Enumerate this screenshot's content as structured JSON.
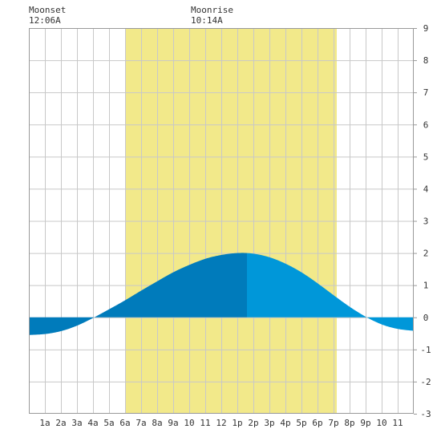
{
  "header": {
    "moonset_label": "Moonset",
    "moonset_time": "12:06A",
    "moonrise_label": "Moonrise",
    "moonrise_time": "10:14A"
  },
  "colors": {
    "daylight": "#f2e98a",
    "tide_dark": "#007bbb",
    "tide_light": "#0097d9",
    "grid": "#c8c8c8",
    "frame": "#999999"
  },
  "chart_data": {
    "type": "area",
    "title": "",
    "xlabel": "",
    "ylabel": "",
    "xlim": [
      0,
      24
    ],
    "ylim": [
      -3,
      9
    ],
    "grid": true,
    "x_tick_labels": [
      "1a",
      "2a",
      "3a",
      "4a",
      "5a",
      "6a",
      "7a",
      "8a",
      "9a",
      "10",
      "11",
      "12",
      "1p",
      "2p",
      "3p",
      "4p",
      "5p",
      "6p",
      "7p",
      "8p",
      "9p",
      "10",
      "11"
    ],
    "y_tick_labels": [
      "-3",
      "-2",
      "-1",
      "0",
      "1",
      "2",
      "3",
      "4",
      "5",
      "6",
      "7",
      "8",
      "9"
    ],
    "daylight_hours": [
      6.0,
      19.2
    ],
    "high_tide_hour": 13.6,
    "tide_series": {
      "x": [
        0,
        1,
        2,
        3,
        4,
        5,
        6,
        7,
        8,
        9,
        10,
        11,
        12,
        13,
        13.6,
        14,
        15,
        16,
        17,
        18,
        19,
        20,
        21,
        22,
        23,
        24
      ],
      "values": [
        -0.55,
        -0.52,
        -0.43,
        -0.26,
        -0.02,
        0.25,
        0.53,
        0.83,
        1.12,
        1.4,
        1.63,
        1.82,
        1.94,
        2.0,
        2.0,
        1.98,
        1.87,
        1.67,
        1.4,
        1.06,
        0.69,
        0.33,
        0.02,
        -0.22,
        -0.36,
        -0.42
      ]
    }
  }
}
